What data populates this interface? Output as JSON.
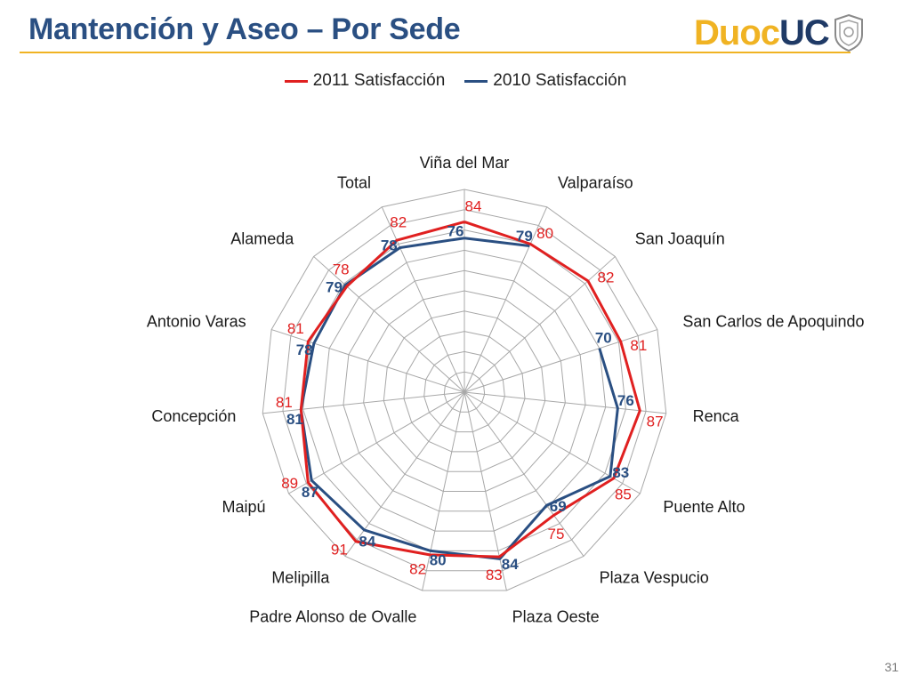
{
  "slide": {
    "title": "Mantención y Aseo – Por Sede",
    "logo": {
      "part1": "Duoc",
      "part2": "UC",
      "color1": "#f0b323",
      "color2": "#1f3a66"
    },
    "page_number": "31",
    "accent_color": "#f0b323",
    "title_color": "#2a4f82"
  },
  "chart_data": {
    "type": "radar",
    "title": "",
    "categories": [
      "Viña del Mar",
      "Valparaíso",
      "San Joaquín",
      "San Carlos de Apoquindo",
      "Renca",
      "Puente Alto",
      "Plaza Vespucio",
      "Plaza Oeste",
      "Padre Alonso de Ovalle",
      "Melipilla",
      "Maipú",
      "Concepción",
      "Antonio Varas",
      "Alameda",
      "Total"
    ],
    "series": [
      {
        "name": "2011 Satisfacción",
        "color": "#e02020",
        "values": [
          84,
          80,
          82,
          81,
          87,
          85,
          75,
          83,
          82,
          91,
          89,
          81,
          81,
          78,
          82
        ]
      },
      {
        "name": "2010 Satisfacción",
        "color": "#2a4f82",
        "values": [
          76,
          79,
          null,
          70,
          76,
          83,
          69,
          84,
          80,
          84,
          87,
          81,
          78,
          79,
          78
        ]
      }
    ],
    "rlim": [
      0,
      100
    ],
    "grid": true,
    "legend_position": "top"
  }
}
